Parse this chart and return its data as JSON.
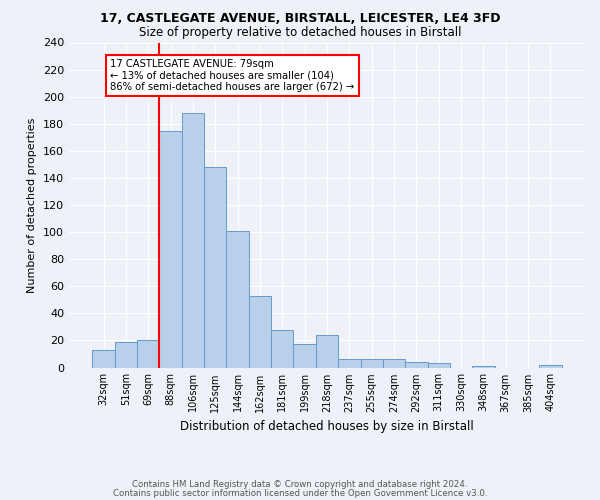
{
  "title1": "17, CASTLEGATE AVENUE, BIRSTALL, LEICESTER, LE4 3FD",
  "title2": "Size of property relative to detached houses in Birstall",
  "xlabel": "Distribution of detached houses by size in Birstall",
  "ylabel": "Number of detached properties",
  "categories": [
    "32sqm",
    "51sqm",
    "69sqm",
    "88sqm",
    "106sqm",
    "125sqm",
    "144sqm",
    "162sqm",
    "181sqm",
    "199sqm",
    "218sqm",
    "237sqm",
    "255sqm",
    "274sqm",
    "292sqm",
    "311sqm",
    "330sqm",
    "348sqm",
    "367sqm",
    "385sqm",
    "404sqm"
  ],
  "values": [
    13,
    19,
    20,
    175,
    188,
    148,
    101,
    53,
    28,
    17,
    24,
    6,
    6,
    6,
    4,
    3,
    0,
    1,
    0,
    0,
    2
  ],
  "bar_color": "#b8d0ea",
  "bar_edge_color": "#6699cc",
  "vline_x": 2.5,
  "vline_color": "red",
  "ylim": [
    0,
    240
  ],
  "yticks": [
    0,
    20,
    40,
    60,
    80,
    100,
    120,
    140,
    160,
    180,
    200,
    220,
    240
  ],
  "annotation_text": "17 CASTLEGATE AVENUE: 79sqm\n← 13% of detached houses are smaller (104)\n86% of semi-detached houses are larger (672) →",
  "annotation_box_color": "white",
  "annotation_box_edge_color": "red",
  "footer1": "Contains HM Land Registry data © Crown copyright and database right 2024.",
  "footer2": "Contains public sector information licensed under the Open Government Licence v3.0.",
  "background_color": "#eef2f8",
  "grid_color": "white"
}
